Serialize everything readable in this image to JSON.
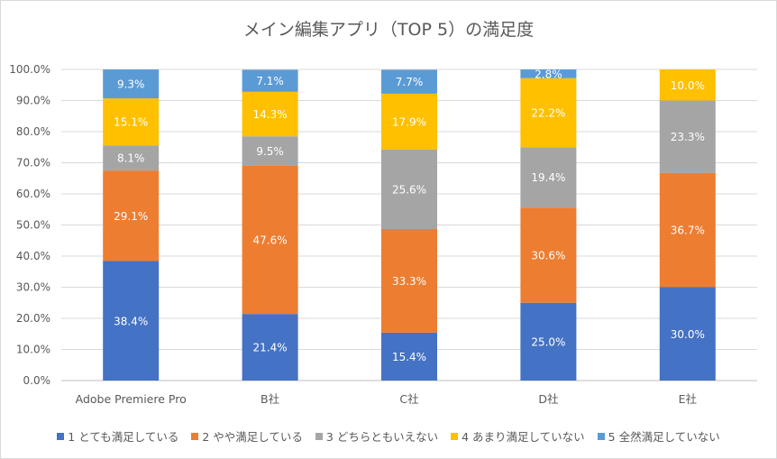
{
  "chart_data": {
    "type": "bar",
    "stacked": true,
    "title": "メイン編集アプリ（TOP 5）の満足度",
    "categories": [
      "Adobe Premiere Pro",
      "B社",
      "C社",
      "D社",
      "E社"
    ],
    "y_ticks": [
      "0.0%",
      "10.0%",
      "20.0%",
      "30.0%",
      "40.0%",
      "50.0%",
      "60.0%",
      "70.0%",
      "80.0%",
      "90.0%",
      "100.0%"
    ],
    "ylim": [
      0,
      100
    ],
    "legend_position": "bottom",
    "series": [
      {
        "name": "1 とても満足している",
        "color": "#4472c4",
        "values": [
          38.4,
          21.4,
          15.4,
          25.0,
          30.0
        ],
        "labels": [
          "38.4%",
          "21.4%",
          "15.4%",
          "25.0%",
          "30.0%"
        ]
      },
      {
        "name": "2 やや満足している",
        "color": "#ed7d31",
        "values": [
          29.1,
          47.6,
          33.3,
          30.6,
          36.7
        ],
        "labels": [
          "29.1%",
          "47.6%",
          "33.3%",
          "30.6%",
          "36.7%"
        ]
      },
      {
        "name": "3 どちらともいえない",
        "color": "#a5a5a5",
        "values": [
          8.1,
          9.5,
          25.6,
          19.4,
          23.3
        ],
        "labels": [
          "8.1%",
          "9.5%",
          "25.6%",
          "19.4%",
          "23.3%"
        ]
      },
      {
        "name": "4 あまり満足していない",
        "color": "#ffc000",
        "values": [
          15.1,
          14.3,
          17.9,
          22.2,
          10.0
        ],
        "labels": [
          "15.1%",
          "14.3%",
          "17.9%",
          "22.2%",
          "10.0%"
        ]
      },
      {
        "name": "5 全然満足していない",
        "color": "#5b9bd5",
        "values": [
          9.3,
          7.1,
          7.7,
          2.8,
          0.0
        ],
        "labels": [
          "9.3%",
          "7.1%",
          "7.7%",
          "2.8%",
          ""
        ]
      }
    ]
  }
}
